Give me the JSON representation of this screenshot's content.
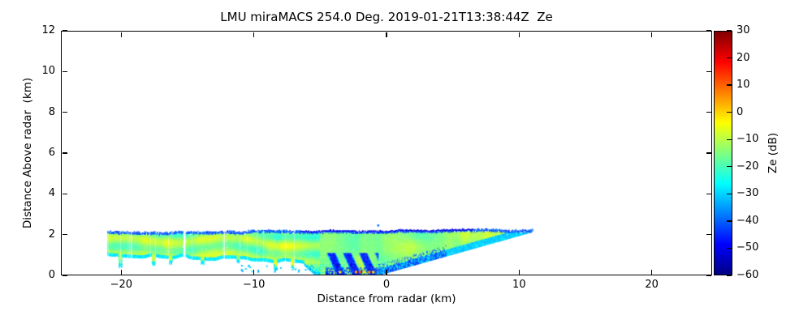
{
  "chart_data": {
    "type": "heatmap",
    "title": "LMU miraMACS 254.0 Deg. 2019-01-21T13:38:44Z  Ze",
    "xlabel": "Distance from radar (km)",
    "ylabel": "Distance Above radar  (km)",
    "xlim": [
      -24.55,
      24.55
    ],
    "ylim": [
      0,
      12
    ],
    "xticks": [
      -20,
      -10,
      0,
      10,
      20
    ],
    "yticks": [
      0,
      2,
      4,
      6,
      8,
      10,
      12
    ],
    "grid": false,
    "background": "#ffffff",
    "frame_color": "#000000",
    "colorbar": {
      "label": "Ze (dB)",
      "units": "dB",
      "vmin": -60,
      "vmax": 30,
      "ticks": [
        30,
        20,
        10,
        0,
        -10,
        -20,
        -30,
        -40,
        -50,
        -60
      ],
      "colormap": "jet",
      "jet_anchors": [
        [
          0.0,
          "#000083"
        ],
        [
          0.125,
          "#0000ff"
        ],
        [
          0.375,
          "#00ffff"
        ],
        [
          0.625,
          "#ffff00"
        ],
        [
          0.875,
          "#ff0000"
        ],
        [
          1.0,
          "#800000"
        ]
      ]
    },
    "echo_layer": {
      "description": "Shallow stratiform radar reflectivity layer below about 2.2 km",
      "x_extent_km": [
        -21.1,
        11.0
      ],
      "top_height_km": 2.15,
      "top_fringe_db": -40,
      "left_band": {
        "x_range": [
          -21.1,
          -6.2
        ],
        "bottom_km": 0.8,
        "core_db": -13,
        "edge_db": -27,
        "hang_columns": [
          {
            "x": -20.1,
            "bottom": 0.35
          },
          {
            "x": -17.6,
            "bottom": 0.45
          },
          {
            "x": -16.3,
            "bottom": 0.5
          },
          {
            "x": -13.9,
            "bottom": 0.5
          },
          {
            "x": -11.2,
            "bottom": 0.55
          },
          {
            "x": -8.4,
            "bottom": 0.2
          },
          {
            "x": -7.1,
            "bottom": 0.25
          }
        ],
        "gaps": [
          -19.3,
          -15.3,
          -12.3
        ]
      },
      "core_column": {
        "x_range": [
          -6.2,
          -0.6
        ],
        "bottom_km": 0.0,
        "core_db": -12,
        "fall_streak_db": -46,
        "fall_streak_region": {
          "x_range": [
            -4.6,
            0.3
          ],
          "h_max": 1.05
        }
      },
      "wedge": {
        "x_origin": -0.6,
        "slope_km_per_km": 0.183,
        "tip_x": 11.0,
        "core_db": -14,
        "bright_db": -7,
        "fringe_db": -30,
        "fringe_streak_db": -45
      },
      "isolated_echo": {
        "x": -0.7,
        "h": 2.4,
        "db": -38
      },
      "ground_clutter": [
        {
          "x": -3.6,
          "db": -2
        },
        {
          "x": -2.4,
          "db": 4
        },
        {
          "x": -2.1,
          "db": 12
        },
        {
          "x": -1.8,
          "db": -4
        },
        {
          "x": -1.4,
          "db": 6
        },
        {
          "x": -1.1,
          "db": 0
        }
      ]
    }
  }
}
